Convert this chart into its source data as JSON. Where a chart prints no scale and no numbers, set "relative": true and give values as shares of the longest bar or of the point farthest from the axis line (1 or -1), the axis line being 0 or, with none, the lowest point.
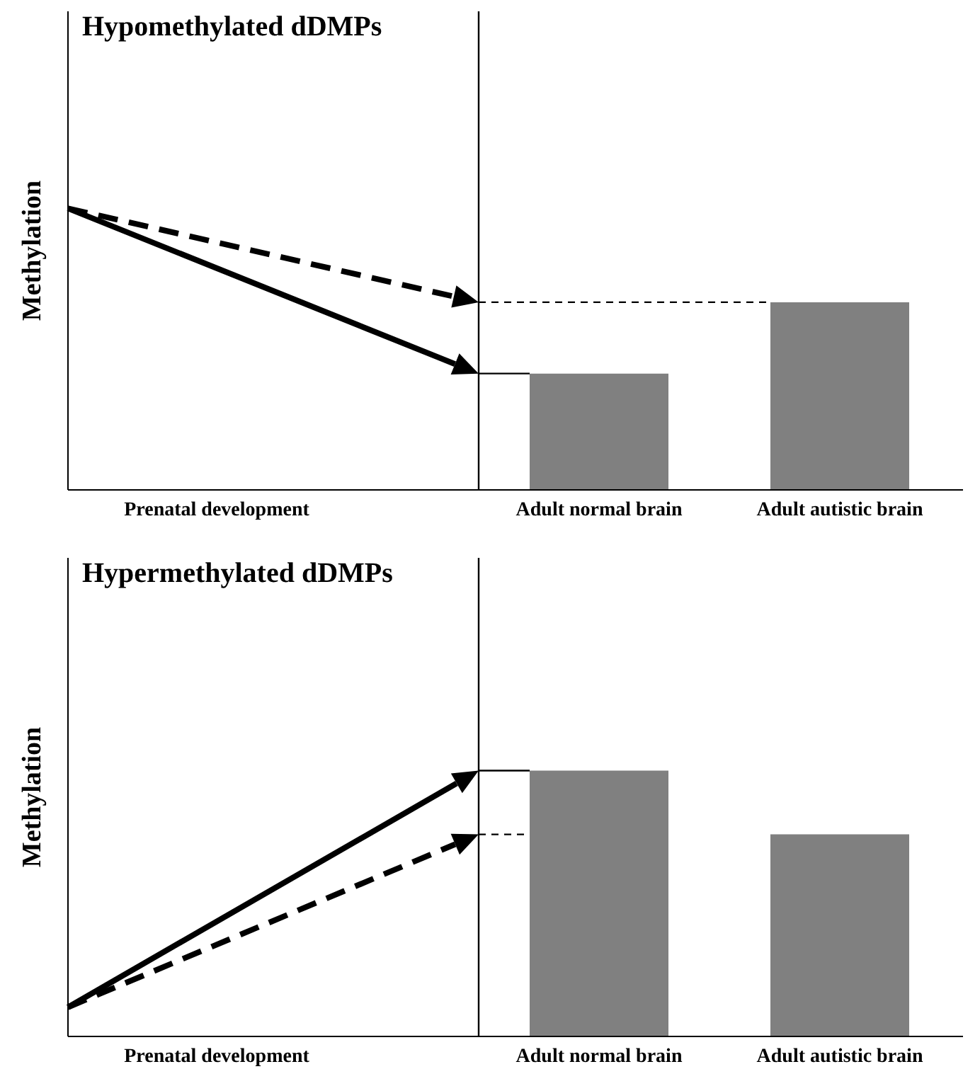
{
  "chart_data": [
    {
      "type": "bar",
      "relative": true,
      "title": "Hypomethylated dDMPs",
      "ylabel": "Methylation",
      "categories": [
        "Prenatal development",
        "Adult normal brain",
        "Adult autistic brain"
      ],
      "values": [
        null,
        0.62,
        1
      ],
      "color": "#808080",
      "ref_lines": [
        {
          "axis": "x",
          "value": "Adult normal brain",
          "color": "#000000"
        }
      ]
    },
    {
      "type": "bar",
      "relative": true,
      "title": "Hypermethylated dDMPs",
      "ylabel": "Methylation",
      "categories": [
        "Prenatal development",
        "Adult normal brain",
        "Adult autistic brain"
      ],
      "values": [
        null,
        1,
        0.76
      ],
      "color": "#808080",
      "ref_lines": [
        {
          "axis": "x",
          "value": "Adult normal brain",
          "color": "#000000"
        }
      ]
    }
  ]
}
